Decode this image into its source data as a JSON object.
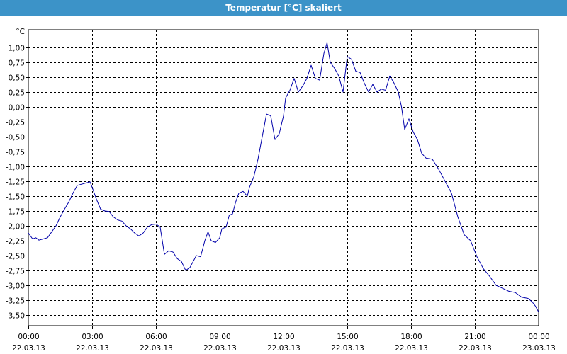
{
  "window": {
    "title": "Temperatur [°C] skaliert"
  },
  "chart_data": {
    "type": "line",
    "title": "Temperatur [°C] skaliert",
    "ylabel": "°C",
    "xlabel": "",
    "ylim": [
      -3.6,
      1.2
    ],
    "xlim_hours": [
      0,
      24
    ],
    "y_ticks": [
      1,
      0.75,
      0.5,
      0.25,
      0,
      -0.25,
      -0.5,
      -0.75,
      -1,
      -1.25,
      -1.5,
      -1.75,
      -2,
      -2.25,
      -2.5,
      -2.75,
      -3,
      -3.25,
      -3.5
    ],
    "y_tick_labels": [
      "1,00",
      "0,75",
      "0,50",
      "0,25",
      "0,00",
      "-0,25",
      "-0,50",
      "-0,75",
      "-1,00",
      "-1,25",
      "-1,50",
      "-1,75",
      "-2,00",
      "-2,25",
      "-2,50",
      "-2,75",
      "-3,00",
      "-3,25",
      "-3,50"
    ],
    "x_ticks_hours": [
      0,
      3,
      6,
      9,
      12,
      15,
      18,
      21,
      24
    ],
    "x_tick_times": [
      "00:00",
      "03:00",
      "06:00",
      "09:00",
      "12:00",
      "15:00",
      "18:00",
      "21:00",
      "00:00"
    ],
    "x_tick_dates": [
      "22.03.13",
      "22.03.13",
      "22.03.13",
      "22.03.13",
      "22.03.13",
      "22.03.13",
      "22.03.13",
      "22.03.13",
      "23.03.13"
    ],
    "grid": true,
    "series": [
      {
        "color": "#0000aa",
        "points": [
          [
            0,
            -2.12
          ],
          [
            0.2,
            -2.22
          ],
          [
            0.35,
            -2.2
          ],
          [
            0.5,
            -2.24
          ],
          [
            0.7,
            -2.22
          ],
          [
            0.9,
            -2.2
          ],
          [
            1.1,
            -2.1
          ],
          [
            1.3,
            -2.0
          ],
          [
            1.5,
            -1.85
          ],
          [
            1.7,
            -1.72
          ],
          [
            1.9,
            -1.6
          ],
          [
            2.1,
            -1.45
          ],
          [
            2.3,
            -1.32
          ],
          [
            2.5,
            -1.3
          ],
          [
            2.7,
            -1.28
          ],
          [
            2.9,
            -1.26
          ],
          [
            3.0,
            -1.35
          ],
          [
            3.2,
            -1.55
          ],
          [
            3.4,
            -1.72
          ],
          [
            3.6,
            -1.75
          ],
          [
            3.8,
            -1.76
          ],
          [
            4.0,
            -1.85
          ],
          [
            4.2,
            -1.9
          ],
          [
            4.4,
            -1.92
          ],
          [
            4.6,
            -2.0
          ],
          [
            4.8,
            -2.05
          ],
          [
            5.0,
            -2.12
          ],
          [
            5.2,
            -2.17
          ],
          [
            5.4,
            -2.12
          ],
          [
            5.6,
            -2.02
          ],
          [
            5.8,
            -1.98
          ],
          [
            6.0,
            -1.97
          ],
          [
            6.2,
            -2.02
          ],
          [
            6.4,
            -2.48
          ],
          [
            6.6,
            -2.42
          ],
          [
            6.8,
            -2.44
          ],
          [
            7.0,
            -2.55
          ],
          [
            7.2,
            -2.6
          ],
          [
            7.4,
            -2.75
          ],
          [
            7.6,
            -2.7
          ],
          [
            7.9,
            -2.5
          ],
          [
            8.1,
            -2.52
          ],
          [
            8.3,
            -2.25
          ],
          [
            8.45,
            -2.1
          ],
          [
            8.6,
            -2.25
          ],
          [
            8.8,
            -2.28
          ],
          [
            9.0,
            -2.2
          ],
          [
            9.1,
            -2.05
          ],
          [
            9.3,
            -2.02
          ],
          [
            9.45,
            -1.82
          ],
          [
            9.6,
            -1.8
          ],
          [
            9.75,
            -1.6
          ],
          [
            9.9,
            -1.45
          ],
          [
            10.1,
            -1.42
          ],
          [
            10.3,
            -1.5
          ],
          [
            10.4,
            -1.35
          ],
          [
            10.6,
            -1.18
          ],
          [
            10.8,
            -0.88
          ],
          [
            11.0,
            -0.5
          ],
          [
            11.2,
            -0.12
          ],
          [
            11.4,
            -0.15
          ],
          [
            11.6,
            -0.55
          ],
          [
            11.8,
            -0.45
          ],
          [
            12.0,
            -0.15
          ],
          [
            12.1,
            0.15
          ],
          [
            12.3,
            0.28
          ],
          [
            12.5,
            0.48
          ],
          [
            12.7,
            0.25
          ],
          [
            12.9,
            0.35
          ],
          [
            13.1,
            0.48
          ],
          [
            13.3,
            0.7
          ],
          [
            13.5,
            0.48
          ],
          [
            13.7,
            0.45
          ],
          [
            13.9,
            0.9
          ],
          [
            14.05,
            1.08
          ],
          [
            14.2,
            0.75
          ],
          [
            14.4,
            0.65
          ],
          [
            14.6,
            0.52
          ],
          [
            14.8,
            0.25
          ],
          [
            15.0,
            0.85
          ],
          [
            15.2,
            0.8
          ],
          [
            15.4,
            0.6
          ],
          [
            15.6,
            0.58
          ],
          [
            15.8,
            0.4
          ],
          [
            16.0,
            0.25
          ],
          [
            16.2,
            0.38
          ],
          [
            16.4,
            0.25
          ],
          [
            16.6,
            0.3
          ],
          [
            16.8,
            0.28
          ],
          [
            17.0,
            0.52
          ],
          [
            17.2,
            0.4
          ],
          [
            17.4,
            0.25
          ],
          [
            17.55,
            0.0
          ],
          [
            17.7,
            -0.38
          ],
          [
            17.9,
            -0.2
          ],
          [
            18.1,
            -0.42
          ],
          [
            18.3,
            -0.55
          ],
          [
            18.5,
            -0.78
          ],
          [
            18.7,
            -0.86
          ],
          [
            19.0,
            -0.88
          ],
          [
            19.3,
            -1.05
          ],
          [
            19.6,
            -1.25
          ],
          [
            19.9,
            -1.45
          ],
          [
            20.2,
            -1.85
          ],
          [
            20.5,
            -2.15
          ],
          [
            20.8,
            -2.25
          ],
          [
            21.1,
            -2.52
          ],
          [
            21.4,
            -2.72
          ],
          [
            21.7,
            -2.85
          ],
          [
            22.0,
            -3.0
          ],
          [
            22.3,
            -3.05
          ],
          [
            22.6,
            -3.1
          ],
          [
            22.9,
            -3.12
          ],
          [
            23.2,
            -3.2
          ],
          [
            23.5,
            -3.22
          ],
          [
            23.7,
            -3.28
          ],
          [
            23.85,
            -3.35
          ],
          [
            24.0,
            -3.45
          ]
        ]
      }
    ]
  }
}
